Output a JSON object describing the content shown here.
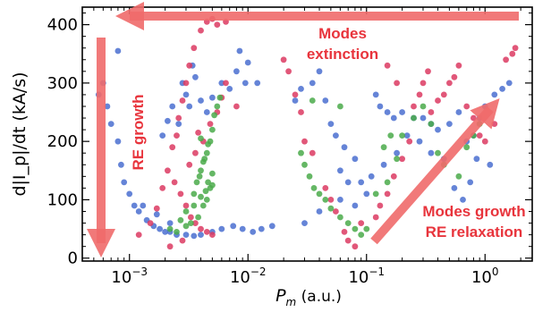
{
  "chart_data": {
    "type": "scatter",
    "title": "",
    "xlabel_var": "P",
    "xlabel_sub": "m",
    "xlabel_unit": " (a.u.)",
    "ylabel": "d|I_p|/dt (kA/s)",
    "x_scale": "log",
    "xlim": [
      0.0004,
      2.5
    ],
    "ylim": [
      -5,
      430
    ],
    "grid": false,
    "legend": "none",
    "x_ticks": [
      0.001,
      0.01,
      0.1,
      1
    ],
    "x_tick_labels": [
      {
        "base": "10",
        "exp": "−3"
      },
      {
        "base": "10",
        "exp": "−2"
      },
      {
        "base": "10",
        "exp": "−1"
      },
      {
        "base": "10",
        "exp": "0"
      }
    ],
    "y_ticks": [
      0,
      100,
      200,
      300,
      400
    ],
    "y_tick_labels": [
      "0",
      "100",
      "200",
      "300",
      "400"
    ],
    "annotations": [
      {
        "text": "Modes",
        "color": "#e8343c"
      },
      {
        "text": "extinction",
        "color": "#e8343c"
      },
      {
        "text": "RE growth",
        "color": "#e8343c"
      },
      {
        "text": "Modes growth",
        "color": "#e8343c"
      },
      {
        "text": "RE relaxation",
        "color": "#e8343c"
      }
    ],
    "series": [
      {
        "color": "#4a6fd0",
        "points": [
          [
            0.00055,
            280
          ],
          [
            0.0006,
            300
          ],
          [
            0.00065,
            260
          ],
          [
            0.0007,
            230
          ],
          [
            0.0008,
            200
          ],
          [
            0.00085,
            160
          ],
          [
            0.0009,
            130
          ],
          [
            0.001,
            110
          ],
          [
            0.0011,
            90
          ],
          [
            0.0012,
            80
          ],
          [
            0.0014,
            65
          ],
          [
            0.0016,
            55
          ],
          [
            0.0018,
            50
          ],
          [
            0.002,
            45
          ],
          [
            0.0022,
            45
          ],
          [
            0.0025,
            40
          ],
          [
            0.003,
            40
          ],
          [
            0.0035,
            38
          ],
          [
            0.004,
            40
          ],
          [
            0.005,
            45
          ],
          [
            0.006,
            50
          ],
          [
            0.0075,
            55
          ],
          [
            0.009,
            50
          ],
          [
            0.011,
            45
          ],
          [
            0.013,
            50
          ],
          [
            0.016,
            55
          ],
          [
            0.0019,
            210
          ],
          [
            0.0021,
            235
          ],
          [
            0.0023,
            260
          ],
          [
            0.0026,
            230
          ],
          [
            0.0028,
            300
          ],
          [
            0.003,
            280
          ],
          [
            0.0032,
            260
          ],
          [
            0.0034,
            330
          ],
          [
            0.0036,
            310
          ],
          [
            0.004,
            270
          ],
          [
            0.0045,
            250
          ],
          [
            0.005,
            275
          ],
          [
            0.006,
            300
          ],
          [
            0.007,
            290
          ],
          [
            0.008,
            320
          ],
          [
            0.0085,
            355
          ],
          [
            0.0095,
            300
          ],
          [
            0.01,
            335
          ],
          [
            0.012,
            300
          ],
          [
            0.0008,
            355
          ],
          [
            0.0013,
            90
          ],
          [
            0.0017,
            75
          ],
          [
            0.0022,
            60
          ],
          [
            0.035,
            300
          ],
          [
            0.04,
            320
          ],
          [
            0.045,
            270
          ],
          [
            0.05,
            230
          ],
          [
            0.055,
            210
          ],
          [
            0.06,
            150
          ],
          [
            0.065,
            190
          ],
          [
            0.07,
            130
          ],
          [
            0.08,
            170
          ],
          [
            0.09,
            130
          ],
          [
            0.1,
            110
          ],
          [
            0.12,
            280
          ],
          [
            0.13,
            260
          ],
          [
            0.15,
            250
          ],
          [
            0.17,
            240
          ],
          [
            0.2,
            250
          ],
          [
            0.25,
            240
          ],
          [
            0.3,
            240
          ],
          [
            0.35,
            230
          ],
          [
            0.4,
            220
          ],
          [
            0.5,
            230
          ],
          [
            0.6,
            250
          ],
          [
            0.7,
            200
          ],
          [
            0.8,
            210
          ],
          [
            0.9,
            240
          ],
          [
            1.0,
            260
          ],
          [
            1.2,
            280
          ],
          [
            1.4,
            290
          ],
          [
            1.6,
            300
          ],
          [
            0.03,
            60
          ],
          [
            0.04,
            80
          ],
          [
            0.06,
            100
          ],
          [
            0.08,
            90
          ],
          [
            0.11,
            140
          ],
          [
            0.14,
            160
          ],
          [
            0.18,
            180
          ],
          [
            0.22,
            210
          ],
          [
            0.28,
            200
          ],
          [
            0.35,
            180
          ],
          [
            0.45,
            170
          ],
          [
            0.55,
            120
          ],
          [
            0.65,
            100
          ],
          [
            0.75,
            130
          ],
          [
            0.85,
            170
          ],
          [
            1.1,
            160
          ],
          [
            0.025,
            270
          ],
          [
            0.028,
            290
          ]
        ]
      },
      {
        "color": "#dc3a62",
        "points": [
          [
            0.0012,
            40
          ],
          [
            0.0015,
            60
          ],
          [
            0.0017,
            85
          ],
          [
            0.0019,
            120
          ],
          [
            0.0021,
            150
          ],
          [
            0.0023,
            190
          ],
          [
            0.0025,
            210
          ],
          [
            0.0026,
            240
          ],
          [
            0.0028,
            270
          ],
          [
            0.003,
            300
          ],
          [
            0.0032,
            330
          ],
          [
            0.0035,
            360
          ],
          [
            0.004,
            390
          ],
          [
            0.0045,
            405
          ],
          [
            0.005,
            410
          ],
          [
            0.0055,
            400
          ],
          [
            0.0065,
            405
          ],
          [
            0.0024,
            130
          ],
          [
            0.0027,
            110
          ],
          [
            0.003,
            90
          ],
          [
            0.0033,
            70
          ],
          [
            0.0036,
            60
          ],
          [
            0.004,
            50
          ],
          [
            0.0045,
            45
          ],
          [
            0.005,
            40
          ],
          [
            0.0032,
            160
          ],
          [
            0.0036,
            180
          ],
          [
            0.0038,
            215
          ],
          [
            0.0042,
            200
          ],
          [
            0.0048,
            230
          ],
          [
            0.0055,
            250
          ],
          [
            0.006,
            275
          ],
          [
            0.0065,
            300
          ],
          [
            0.008,
            260
          ],
          [
            0.0028,
            30
          ],
          [
            0.0022,
            20
          ],
          [
            0.02,
            340
          ],
          [
            0.022,
            320
          ],
          [
            0.025,
            280
          ],
          [
            0.028,
            250
          ],
          [
            0.03,
            200
          ],
          [
            0.035,
            180
          ],
          [
            0.045,
            120
          ],
          [
            0.05,
            100
          ],
          [
            0.055,
            80
          ],
          [
            0.065,
            45
          ],
          [
            0.07,
            30
          ],
          [
            0.08,
            20
          ],
          [
            0.09,
            60
          ],
          [
            0.12,
            70
          ],
          [
            0.13,
            90
          ],
          [
            0.15,
            110
          ],
          [
            0.17,
            140
          ],
          [
            0.2,
            170
          ],
          [
            0.23,
            200
          ],
          [
            0.25,
            260
          ],
          [
            0.28,
            280
          ],
          [
            0.3,
            300
          ],
          [
            0.33,
            320
          ],
          [
            0.35,
            250
          ],
          [
            0.4,
            270
          ],
          [
            0.45,
            280
          ],
          [
            0.5,
            300
          ],
          [
            0.55,
            310
          ],
          [
            0.6,
            330
          ],
          [
            0.7,
            260
          ],
          [
            0.8,
            240
          ],
          [
            0.9,
            210
          ],
          [
            1.0,
            200
          ],
          [
            1.2,
            230
          ],
          [
            1.5,
            340
          ],
          [
            1.7,
            350
          ],
          [
            1.8,
            360
          ],
          [
            0.15,
            330
          ],
          [
            0.18,
            300
          ]
        ]
      },
      {
        "color": "#4aaa4a",
        "points": [
          [
            0.0035,
            110
          ],
          [
            0.0037,
            130
          ],
          [
            0.004,
            150
          ],
          [
            0.0042,
            165
          ],
          [
            0.0045,
            180
          ],
          [
            0.0048,
            200
          ],
          [
            0.005,
            220
          ],
          [
            0.0052,
            245
          ],
          [
            0.0055,
            260
          ],
          [
            0.0058,
            275
          ],
          [
            0.0045,
            100
          ],
          [
            0.0048,
            120
          ],
          [
            0.005,
            125
          ],
          [
            0.0042,
            90
          ],
          [
            0.0038,
            70
          ],
          [
            0.0033,
            60
          ],
          [
            0.003,
            55
          ],
          [
            0.0025,
            45
          ],
          [
            0.0022,
            50
          ],
          [
            0.004,
            105
          ],
          [
            0.0044,
            115
          ],
          [
            0.0046,
            130
          ],
          [
            0.0035,
            90
          ],
          [
            0.003,
            80
          ],
          [
            0.0027,
            65
          ],
          [
            0.0039,
            140
          ],
          [
            0.0043,
            170
          ],
          [
            0.005,
            145
          ],
          [
            0.004,
            205
          ],
          [
            0.0046,
            195
          ],
          [
            0.028,
            180
          ],
          [
            0.03,
            160
          ],
          [
            0.033,
            140
          ],
          [
            0.036,
            120
          ],
          [
            0.04,
            110
          ],
          [
            0.045,
            100
          ],
          [
            0.05,
            85
          ],
          [
            0.06,
            70
          ],
          [
            0.07,
            60
          ],
          [
            0.08,
            50
          ],
          [
            0.09,
            40
          ],
          [
            0.1,
            50
          ],
          [
            0.12,
            110
          ],
          [
            0.15,
            130
          ],
          [
            0.18,
            170
          ],
          [
            0.2,
            210
          ],
          [
            0.25,
            240
          ],
          [
            0.3,
            260
          ],
          [
            0.35,
            230
          ],
          [
            0.4,
            180
          ],
          [
            0.45,
            160
          ],
          [
            0.6,
            140
          ],
          [
            0.7,
            190
          ],
          [
            0.8,
            210
          ],
          [
            0.9,
            230
          ],
          [
            0.14,
            190
          ],
          [
            0.16,
            210
          ],
          [
            0.035,
            270
          ],
          [
            0.06,
            260
          ]
        ]
      }
    ]
  }
}
